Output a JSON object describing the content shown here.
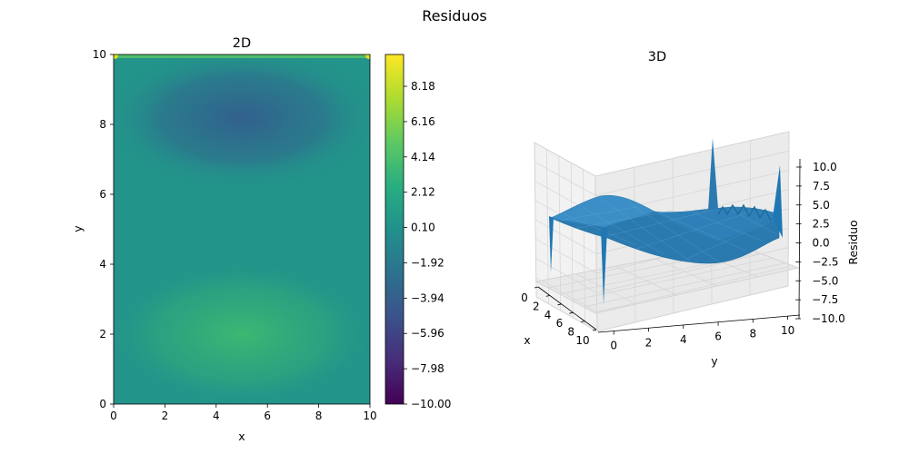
{
  "figure": {
    "suptitle": "Residuos"
  },
  "chart_data": [
    {
      "type": "heatmap",
      "title": "2D",
      "xlabel": "x",
      "ylabel": "y",
      "xlim": [
        0,
        10
      ],
      "ylim": [
        0,
        10
      ],
      "x_ticks": [
        "0",
        "2",
        "4",
        "6",
        "8",
        "10"
      ],
      "y_ticks": [
        "0",
        "2",
        "4",
        "6",
        "8",
        "10"
      ],
      "colormap": "viridis",
      "clim": [
        -10,
        10
      ],
      "colorbar_ticks": [
        "−10.00",
        "−7.98",
        "−5.96",
        "−3.94",
        "−1.92",
        "0.10",
        "2.12",
        "4.14",
        "6.16",
        "8.18"
      ],
      "colorbar_tick_values": [
        -10.0,
        -7.98,
        -5.96,
        -3.94,
        -1.92,
        0.1,
        2.12,
        4.14,
        6.16,
        8.18
      ],
      "features": [
        {
          "kind": "minimum",
          "x": 5,
          "y": 8,
          "value": -3.5
        },
        {
          "kind": "maximum",
          "x": 5,
          "y": 2,
          "value": 3.5
        },
        {
          "kind": "corner_spike",
          "x": 0,
          "y": 10,
          "value": 10
        },
        {
          "kind": "corner_spike",
          "x": 10,
          "y": 10,
          "value": 10
        }
      ]
    },
    {
      "type": "surface",
      "title": "3D",
      "xlabel": "x",
      "ylabel": "y",
      "zlabel": "Residuo",
      "x_ticks": [
        "0",
        "2",
        "4",
        "6",
        "8",
        "10"
      ],
      "y_ticks": [
        "0",
        "2",
        "4",
        "6",
        "8",
        "10"
      ],
      "z_ticks": [
        "−10.0",
        "−7.5",
        "−5.0",
        "−2.5",
        "0.0",
        "2.5",
        "5.0",
        "7.5",
        "10.0"
      ],
      "zlim": [
        -10,
        10
      ],
      "color": "#1f77b4"
    }
  ]
}
